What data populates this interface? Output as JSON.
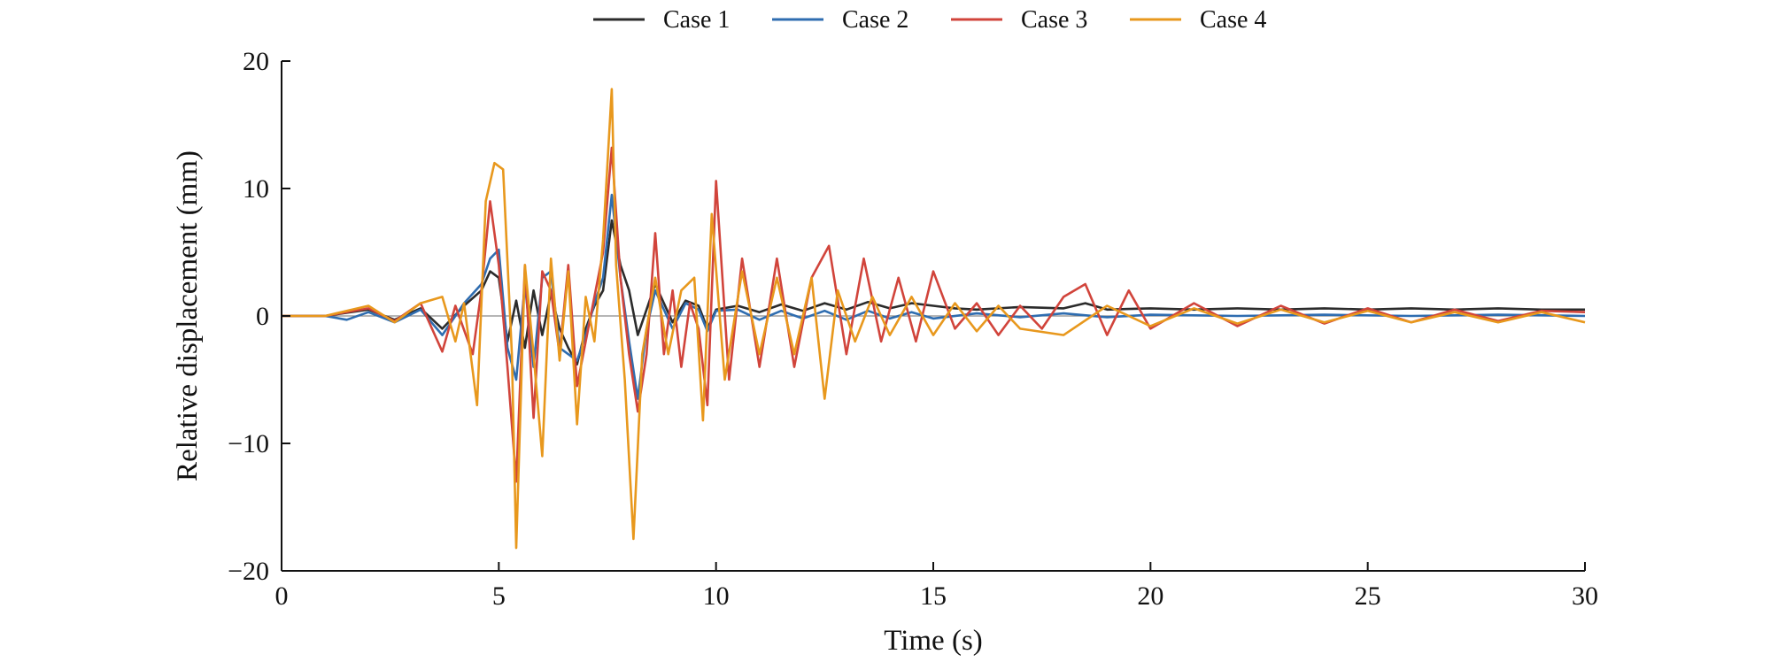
{
  "chart_data": {
    "type": "line",
    "title": "",
    "xlabel": "Time (s)",
    "ylabel": "Relative displacement (mm)",
    "xlim": [
      0,
      30
    ],
    "ylim": [
      -20,
      20
    ],
    "x_ticks": [
      0,
      5,
      10,
      15,
      20,
      25,
      30
    ],
    "y_ticks": [
      20,
      10,
      0,
      -10,
      -20
    ],
    "x_tick_labels": [
      "0",
      "5",
      "10",
      "15",
      "20",
      "25",
      "30"
    ],
    "y_tick_labels": [
      "20",
      "10",
      "0",
      "−10",
      "−20"
    ],
    "grid": false,
    "legend_position": "top-center",
    "series": [
      {
        "name": "Case 1",
        "color": "#2b2b2b",
        "x": [
          0,
          1.0,
          1.4,
          2.0,
          2.6,
          3.2,
          3.7,
          4.2,
          4.6,
          4.8,
          5.0,
          5.2,
          5.4,
          5.6,
          5.8,
          6.0,
          6.2,
          6.4,
          6.6,
          6.8,
          7.0,
          7.2,
          7.4,
          7.6,
          7.8,
          8.0,
          8.2,
          8.4,
          8.6,
          8.8,
          9.0,
          9.3,
          9.6,
          9.8,
          10.0,
          10.5,
          11.0,
          11.5,
          12.0,
          12.5,
          13.0,
          13.5,
          14.0,
          14.5,
          15.0,
          15.5,
          16.0,
          17.0,
          18.0,
          18.5,
          19.0,
          20.0,
          21.0,
          22.0,
          23.0,
          24.0,
          25.0,
          26.0,
          27.0,
          28.0,
          29.0,
          30.0
        ],
        "y": [
          0,
          0,
          0.2,
          0.5,
          -0.3,
          0.6,
          -1.0,
          0.8,
          2.0,
          3.5,
          3.0,
          -2.0,
          1.2,
          -2.5,
          2.0,
          -1.5,
          1.8,
          -1.0,
          -2.5,
          -3.8,
          -1.0,
          0.8,
          2.0,
          7.5,
          4.0,
          2.0,
          -1.5,
          0.5,
          2.5,
          1.0,
          -0.5,
          1.2,
          0.8,
          -1.0,
          0.5,
          0.8,
          0.3,
          0.9,
          0.4,
          1.0,
          0.5,
          1.1,
          0.6,
          1.0,
          0.8,
          0.6,
          0.5,
          0.7,
          0.6,
          1.0,
          0.5,
          0.6,
          0.5,
          0.6,
          0.5,
          0.6,
          0.5,
          0.6,
          0.5,
          0.6,
          0.5,
          0.5
        ]
      },
      {
        "name": "Case 2",
        "color": "#2f6db0",
        "x": [
          0,
          1.0,
          1.5,
          2.0,
          2.6,
          3.2,
          3.7,
          4.2,
          4.6,
          4.8,
          5.0,
          5.2,
          5.4,
          5.6,
          5.8,
          6.0,
          6.2,
          6.4,
          6.6,
          6.8,
          7.0,
          7.2,
          7.4,
          7.6,
          7.8,
          8.0,
          8.2,
          8.4,
          8.6,
          8.8,
          9.0,
          9.3,
          9.6,
          9.8,
          10.0,
          10.5,
          11.0,
          11.5,
          12.0,
          12.5,
          13.0,
          13.5,
          14.0,
          14.5,
          15.0,
          16.0,
          17.0,
          18.0,
          19.0,
          20.0,
          22.0,
          24.0,
          26.0,
          28.0,
          30.0
        ],
        "y": [
          0,
          0,
          -0.3,
          0.3,
          -0.5,
          0.5,
          -1.5,
          1.0,
          2.5,
          4.5,
          5.2,
          -2.5,
          -5.0,
          2.5,
          -4.0,
          3.0,
          3.5,
          -2.5,
          -3.0,
          -3.5,
          -1.5,
          1.0,
          3.0,
          9.5,
          3.0,
          -2.0,
          -6.5,
          -1.0,
          2.0,
          0.5,
          -1.0,
          1.0,
          0.5,
          -1.2,
          0.4,
          0.5,
          -0.3,
          0.4,
          -0.2,
          0.4,
          -0.3,
          0.4,
          -0.2,
          0.3,
          -0.2,
          0.2,
          -0.1,
          0.2,
          -0.1,
          0.1,
          0.0,
          0.1,
          0.0,
          0.1,
          0.0
        ]
      },
      {
        "name": "Case 3",
        "color": "#d1443b",
        "x": [
          0,
          1.0,
          2.0,
          2.6,
          3.2,
          3.7,
          4.0,
          4.4,
          4.6,
          4.8,
          5.0,
          5.2,
          5.4,
          5.6,
          5.8,
          6.0,
          6.2,
          6.4,
          6.6,
          6.8,
          7.0,
          7.2,
          7.4,
          7.6,
          7.8,
          8.0,
          8.2,
          8.4,
          8.6,
          8.8,
          9.0,
          9.2,
          9.4,
          9.6,
          9.8,
          10.0,
          10.3,
          10.6,
          11.0,
          11.4,
          11.8,
          12.2,
          12.6,
          13.0,
          13.4,
          13.8,
          14.2,
          14.6,
          15.0,
          15.5,
          16.0,
          16.5,
          17.0,
          17.5,
          18.0,
          18.5,
          19.0,
          19.5,
          20.0,
          21.0,
          22.0,
          23.0,
          24.0,
          25.0,
          26.0,
          27.0,
          28.0,
          29.0,
          30.0
        ],
        "y": [
          0,
          0,
          0.6,
          -0.4,
          1.0,
          -2.8,
          0.8,
          -3.0,
          2.0,
          9.0,
          4.0,
          -4.0,
          -13.0,
          4.0,
          -8.0,
          3.5,
          2.0,
          -3.0,
          4.0,
          -5.5,
          -2.0,
          1.5,
          5.0,
          13.2,
          3.0,
          -3.0,
          -7.5,
          -3.0,
          6.5,
          -3.0,
          2.0,
          -4.0,
          1.0,
          -1.0,
          -7.0,
          10.6,
          -5.0,
          4.5,
          -4.0,
          4.5,
          -4.0,
          3.0,
          5.5,
          -3.0,
          4.5,
          -2.0,
          3.0,
          -2.0,
          3.5,
          -1.0,
          1.0,
          -1.5,
          0.8,
          -1.0,
          1.5,
          2.5,
          -1.5,
          2.0,
          -1.0,
          1.0,
          -0.8,
          0.8,
          -0.6,
          0.6,
          -0.5,
          0.5,
          -0.4,
          0.4,
          0.3
        ]
      },
      {
        "name": "Case 4",
        "color": "#e8981d",
        "x": [
          0,
          1.0,
          2.0,
          2.6,
          3.2,
          3.7,
          4.0,
          4.2,
          4.5,
          4.7,
          4.9,
          5.1,
          5.3,
          5.4,
          5.6,
          5.8,
          6.0,
          6.2,
          6.4,
          6.6,
          6.8,
          7.0,
          7.2,
          7.4,
          7.6,
          7.7,
          7.9,
          8.1,
          8.3,
          8.6,
          8.9,
          9.2,
          9.5,
          9.7,
          9.9,
          10.2,
          10.6,
          11.0,
          11.4,
          11.8,
          12.2,
          12.5,
          12.8,
          13.2,
          13.6,
          14.0,
          14.5,
          15.0,
          15.5,
          16.0,
          16.5,
          17.0,
          18.0,
          19.0,
          20.0,
          21.0,
          22.0,
          23.0,
          24.0,
          25.0,
          26.0,
          27.0,
          28.0,
          29.0,
          30.0
        ],
        "y": [
          0,
          0,
          0.8,
          -0.5,
          1.0,
          1.5,
          -2.0,
          1.0,
          -7.0,
          9.0,
          12.0,
          11.5,
          -3.0,
          -18.2,
          4.0,
          -3.0,
          -11.0,
          4.5,
          -3.5,
          3.5,
          -8.5,
          1.5,
          -2.0,
          6.0,
          17.8,
          4.0,
          -5.0,
          -17.5,
          -3.0,
          3.0,
          -3.0,
          2.0,
          3.0,
          -8.2,
          8.0,
          -5.0,
          3.5,
          -3.0,
          3.0,
          -3.0,
          3.0,
          -6.5,
          2.0,
          -2.0,
          1.5,
          -1.5,
          1.5,
          -1.5,
          1.0,
          -1.2,
          0.8,
          -1.0,
          -1.5,
          0.8,
          -0.8,
          0.6,
          -0.6,
          0.5,
          -0.5,
          0.4,
          -0.5,
          0.3,
          -0.5,
          0.3,
          -0.5
        ]
      }
    ]
  }
}
